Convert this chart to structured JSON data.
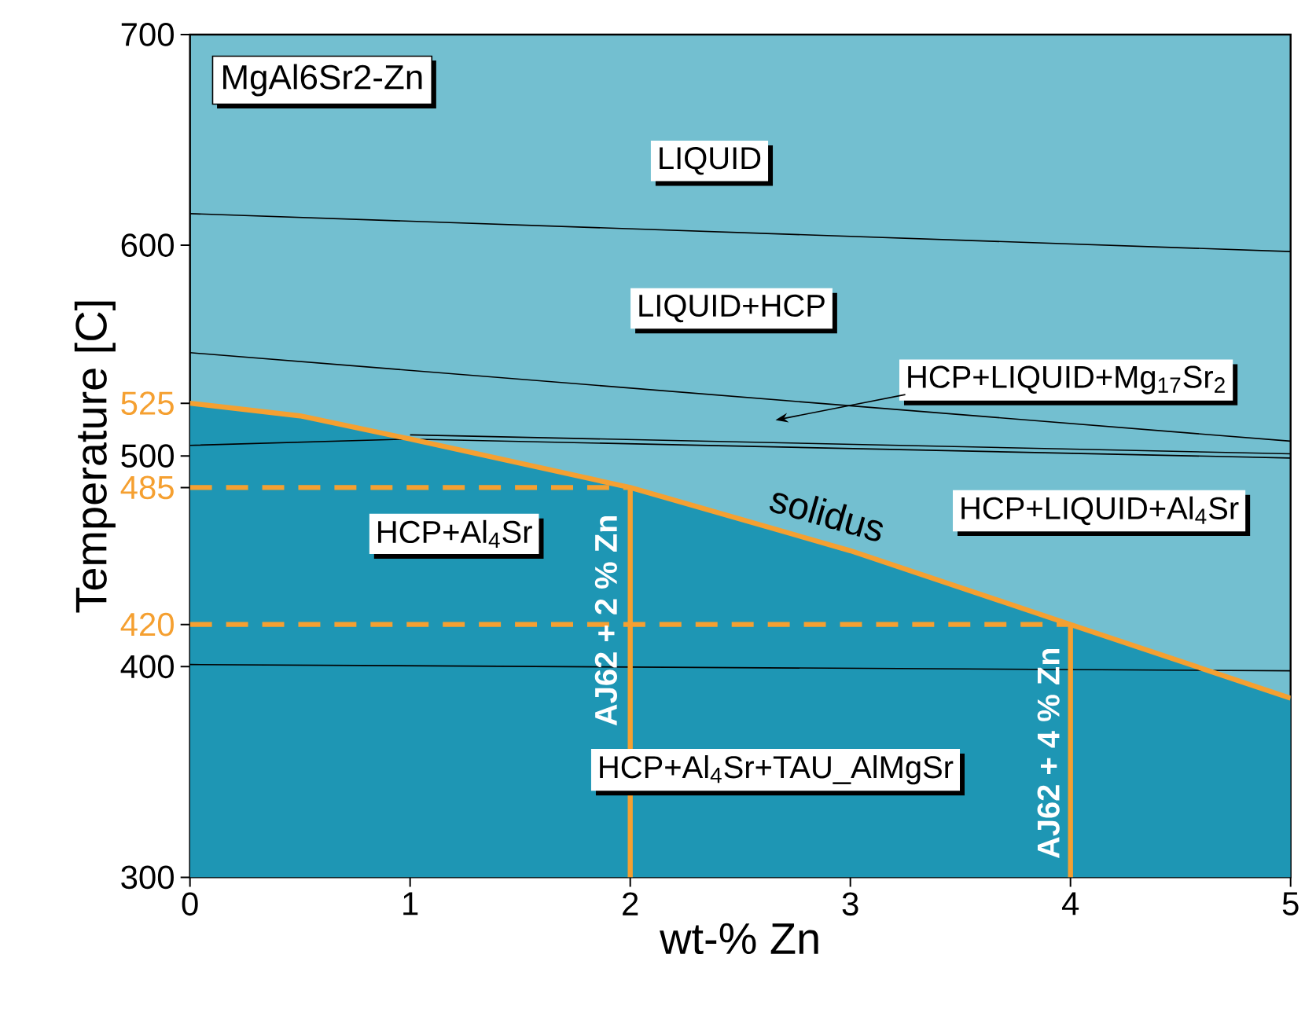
{
  "chart_data": {
    "type": "line",
    "title": "MgAl6Sr2-Zn",
    "xlabel": "wt-% Zn",
    "ylabel": "Temperature [C]",
    "xlim": [
      0,
      5
    ],
    "ylim": [
      300,
      700
    ],
    "xticks": [
      0,
      1,
      2,
      3,
      4,
      5
    ],
    "yticks": [
      300,
      400,
      420,
      485,
      500,
      525,
      600,
      700
    ],
    "series": [
      {
        "type": "area",
        "color": "#1e96b4",
        "x": [
          0,
          0.5,
          1,
          2,
          3,
          4,
          5
        ],
        "values": [
          525,
          519,
          508,
          485,
          455,
          420,
          385
        ]
      },
      {
        "color": "#000000",
        "x": [
          0,
          5
        ],
        "values": [
          615,
          597
        ]
      },
      {
        "color": "#000000",
        "x": [
          0,
          5
        ],
        "values": [
          549,
          507
        ]
      },
      {
        "color": "#000000",
        "x": [
          1,
          5
        ],
        "values": [
          510,
          501
        ]
      },
      {
        "color": "#000000",
        "x": [
          0,
          1,
          5
        ],
        "values": [
          505,
          508,
          499
        ]
      },
      {
        "color": "#000000",
        "x": [
          0,
          5
        ],
        "values": [
          401,
          398
        ]
      },
      {
        "color": "#f5a031",
        "line_style": "dashed",
        "x": [
          0,
          2
        ],
        "values": [
          485,
          485
        ]
      },
      {
        "color": "#f5a031",
        "line_style": "dashed",
        "x": [
          0,
          4
        ],
        "values": [
          420,
          420
        ]
      },
      {
        "color": "#f5a031",
        "x": [
          2,
          2
        ],
        "values": [
          300,
          485
        ]
      },
      {
        "color": "#f5a031",
        "x": [
          4,
          4
        ],
        "values": [
          300,
          420
        ]
      },
      {
        "name": "solidus",
        "color": "#f5a031",
        "x": [
          0,
          0.5,
          1,
          2,
          3,
          4,
          5
        ],
        "values": [
          525,
          519,
          508,
          485,
          455,
          420,
          385
        ]
      }
    ],
    "annotations": [
      "LIQUID",
      "LIQUID+HCP",
      "HCP+LIQUID+Mg$_{17}$Sr$_{2}$",
      "HCP+LIQUID+Al$_{4}$Sr",
      "HCP+Al$_{4}$Sr",
      "HCP+Al$_{4}$Sr+TAU_AlMgSr",
      "AJ62 + 2 % Zn",
      "AJ62 + 4 % Zn"
    ]
  }
}
